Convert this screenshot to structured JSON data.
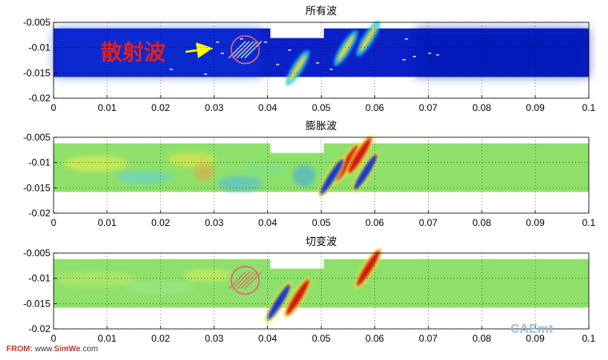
{
  "chart_data": [
    {
      "type": "heatmap",
      "title": "所有波",
      "colormap": "jet",
      "xlim": [
        0,
        0.1
      ],
      "ylim": [
        -0.02,
        -0.005
      ],
      "xticks": [
        0,
        0.01,
        0.02,
        0.03,
        0.04,
        0.05,
        0.06,
        0.07,
        0.08,
        0.09,
        0.1
      ],
      "yticks": [
        -0.005,
        -0.01,
        -0.015,
        -0.02
      ],
      "grid": true,
      "domain_y": [
        -0.0158,
        -0.0062
      ],
      "notch_x": [
        0.0405,
        0.0505
      ],
      "circle": {
        "x": 0.0358,
        "y": -0.0104,
        "r": 0.0026
      },
      "annotation": {
        "text": "散射波",
        "arrow_to": [
          0.029,
          -0.0102
        ]
      },
      "features": [
        {
          "x": 0.0546,
          "y": -0.0101,
          "kind": "wavefront"
        },
        {
          "x": 0.0588,
          "y": -0.0082,
          "kind": "wavefront"
        },
        {
          "x": 0.0456,
          "y": -0.014,
          "kind": "wavefront"
        }
      ]
    },
    {
      "type": "heatmap",
      "title": "膨胀波",
      "colormap": "jet",
      "xlim": [
        0,
        0.1
      ],
      "ylim": [
        -0.02,
        -0.005
      ],
      "xticks": [
        0,
        0.01,
        0.02,
        0.03,
        0.04,
        0.05,
        0.06,
        0.07,
        0.08,
        0.09,
        0.1
      ],
      "yticks": [
        -0.005,
        -0.01,
        -0.015,
        -0.02
      ],
      "grid": true,
      "domain_y": [
        -0.0158,
        -0.0062
      ],
      "notch_x": [
        0.0405,
        0.0505
      ],
      "features": [
        {
          "x": 0.0548,
          "y": -0.0101,
          "kind": "red-band"
        },
        {
          "x": 0.0572,
          "y": -0.0086,
          "kind": "red-band"
        },
        {
          "x": 0.052,
          "y": -0.0128,
          "kind": "blue-band"
        },
        {
          "x": 0.0583,
          "y": -0.0119,
          "kind": "blue-band"
        }
      ]
    },
    {
      "type": "heatmap",
      "title": "切变波",
      "colormap": "jet",
      "xlim": [
        0,
        0.1
      ],
      "ylim": [
        -0.02,
        -0.005
      ],
      "xticks": [
        0,
        0.01,
        0.02,
        0.03,
        0.04,
        0.05,
        0.06,
        0.07,
        0.08,
        0.09,
        0.1
      ],
      "yticks": [
        -0.005,
        -0.01,
        -0.015,
        -0.02
      ],
      "grid": true,
      "domain_y": [
        -0.0158,
        -0.0062
      ],
      "notch_x": [
        0.0405,
        0.0505
      ],
      "circle": {
        "x": 0.0358,
        "y": -0.0104,
        "r": 0.0026
      },
      "features": [
        {
          "x": 0.0456,
          "y": -0.0138,
          "kind": "red-band"
        },
        {
          "x": 0.0588,
          "y": -0.008,
          "kind": "red-band"
        },
        {
          "x": 0.0421,
          "y": -0.0147,
          "kind": "blue-band"
        }
      ]
    }
  ],
  "credit": {
    "from": "FROM:",
    "site": "www.",
    "brand": "SimWe",
    "suffix": ".com"
  },
  "watermark": "CAEmt"
}
